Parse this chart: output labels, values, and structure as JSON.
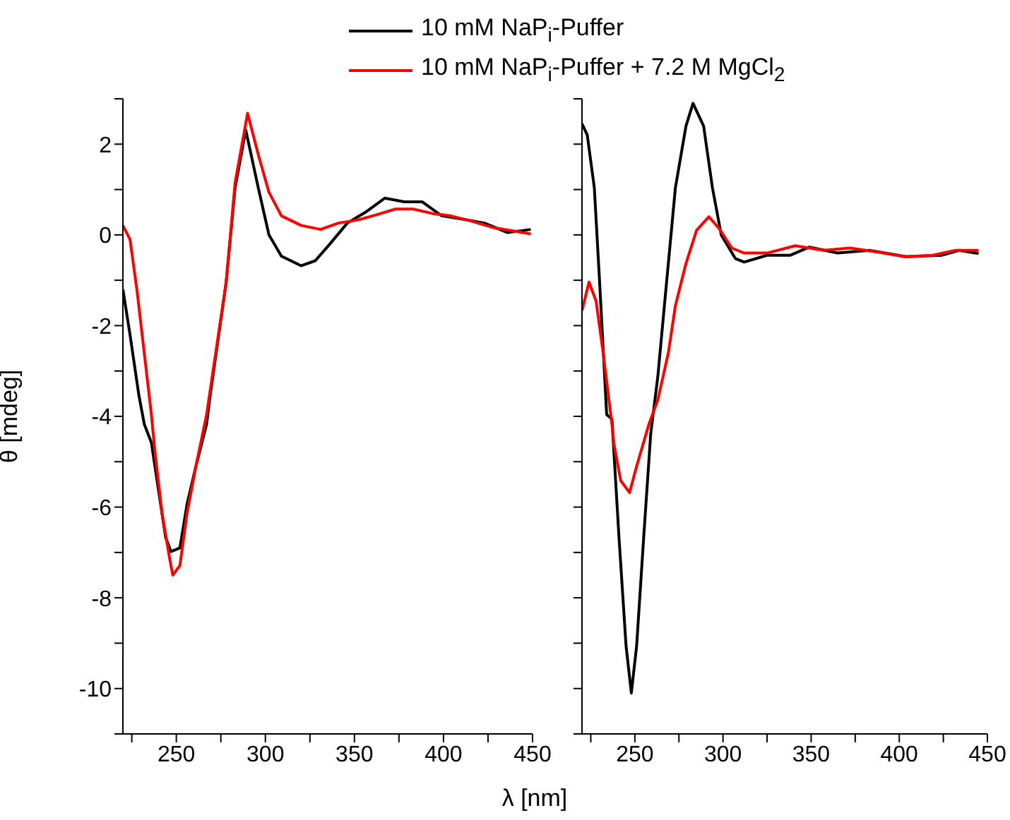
{
  "chart_data": [
    {
      "type": "line",
      "ylabel": "θ [mdeg]",
      "xlabel": "λ [nm]",
      "legend": "top",
      "xlim": [
        220,
        450
      ],
      "ylim": [
        -11,
        3
      ],
      "xticks": [
        {
          "value": 225,
          "label": null
        },
        250,
        {
          "value": 275,
          "label": null
        },
        300,
        {
          "value": 325,
          "label": null
        },
        350,
        {
          "value": 375,
          "label": null
        },
        400,
        {
          "value": 425,
          "label": null
        },
        450
      ],
      "yticks": [
        {
          "value": -11,
          "label": null
        },
        -10,
        {
          "value": -9,
          "label": null
        },
        -8,
        {
          "value": -7,
          "label": null
        },
        -6,
        {
          "value": -5,
          "label": null
        },
        -4,
        {
          "value": -3,
          "label": null
        },
        -2,
        {
          "value": -1,
          "label": null
        },
        0,
        {
          "value": 1,
          "label": null
        },
        2,
        {
          "value": 3,
          "label": null
        }
      ],
      "series": [
        {
          "name": "10 mM NaP$_{i}$-Puffer",
          "color": "#000000",
          "x": [
            220,
            224,
            229,
            232,
            236,
            240,
            244,
            247,
            252,
            256,
            261,
            267,
            269,
            278,
            283,
            289,
            296,
            302,
            309,
            320,
            328,
            336,
            346,
            357,
            367,
            378,
            388,
            399,
            409,
            423,
            436,
            449
          ],
          "values": [
            -1.2,
            -2.2,
            -3.54,
            -4.17,
            -4.58,
            -5.63,
            -6.67,
            -6.98,
            -6.9,
            -5.94,
            -5.1,
            -4.17,
            -3.54,
            -1.04,
            1.04,
            2.31,
            1.04,
            0,
            -0.47,
            -0.68,
            -0.57,
            -0.21,
            0.26,
            0.52,
            0.81,
            0.73,
            0.73,
            0.42,
            0.36,
            0.26,
            0.05,
            0.12
          ]
        },
        {
          "name": "10 mM NaP$_{i}$-Puffer + 7.2 M MgCl$_{2}$",
          "color": "#ff0000",
          "x": [
            220,
            224,
            228,
            236,
            238,
            242,
            246,
            248,
            252,
            256,
            261,
            267,
            278,
            283,
            290,
            296,
            302,
            309,
            320,
            331,
            341,
            352,
            362,
            373,
            383,
            394,
            404,
            415,
            428,
            449
          ],
          "values": [
            0.21,
            -0.1,
            -1.25,
            -3.96,
            -4.79,
            -6.14,
            -7.08,
            -7.5,
            -7.29,
            -6.14,
            -5.1,
            -3.96,
            -1.04,
            1.15,
            2.68,
            1.77,
            0.94,
            0.42,
            0.21,
            0.12,
            0.26,
            0.33,
            0.44,
            0.57,
            0.57,
            0.47,
            0.42,
            0.31,
            0.16,
            0.02
          ]
        }
      ]
    },
    {
      "type": "line",
      "tick_labels": "x",
      "xlim": [
        220,
        450
      ],
      "ylim": [
        -11,
        3
      ],
      "xticks": [
        {
          "value": 225,
          "label": null
        },
        250,
        {
          "value": 275,
          "label": null
        },
        300,
        {
          "value": 325,
          "label": null
        },
        350,
        {
          "value": 375,
          "label": null
        },
        400,
        {
          "value": 425,
          "label": null
        },
        450
      ],
      "yticks": [
        {
          "value": -11,
          "label": null
        },
        {
          "value": -10,
          "label": null
        },
        {
          "value": -9,
          "label": null
        },
        {
          "value": -8,
          "label": null
        },
        {
          "value": -7,
          "label": null
        },
        {
          "value": -6,
          "label": null
        },
        {
          "value": -5,
          "label": null
        },
        {
          "value": -4,
          "label": null
        },
        {
          "value": -3,
          "label": null
        },
        {
          "value": -2,
          "label": null
        },
        {
          "value": -1,
          "label": null
        },
        {
          "value": 0,
          "label": null
        },
        {
          "value": 1,
          "label": null
        },
        {
          "value": 2,
          "label": null
        },
        {
          "value": 3,
          "label": null
        }
      ],
      "series": [
        {
          "color": "#000000",
          "x": [
            220,
            223,
            227,
            230,
            234,
            237,
            241,
            245,
            248,
            251,
            255,
            259,
            263,
            268,
            273,
            279,
            283,
            289,
            294,
            299,
            307,
            312,
            325,
            338,
            349,
            365,
            383,
            404,
            424,
            434,
            445
          ],
          "values": [
            2.45,
            2.2,
            1.04,
            -1.04,
            -3.96,
            -4.06,
            -6.67,
            -9.06,
            -10.1,
            -9.06,
            -6.67,
            -4.38,
            -3.13,
            -1.04,
            1.04,
            2.4,
            2.9,
            2.4,
            1.04,
            0,
            -0.52,
            -0.6,
            -0.45,
            -0.45,
            -0.27,
            -0.4,
            -0.34,
            -0.48,
            -0.45,
            -0.34,
            -0.41
          ]
        },
        {
          "color": "#ff0000",
          "x": [
            220,
            224,
            228,
            232,
            237,
            238,
            242,
            247,
            251,
            258,
            263,
            269,
            273,
            279,
            285,
            292,
            298,
            305,
            312,
            325,
            341,
            357,
            372,
            388,
            403,
            419,
            432,
            445
          ],
          "values": [
            -1.67,
            -1.04,
            -1.46,
            -2.6,
            -4.17,
            -4.58,
            -5.42,
            -5.68,
            -5.1,
            -4.17,
            -3.64,
            -2.6,
            -1.56,
            -0.63,
            0.1,
            0.4,
            0.13,
            -0.29,
            -0.4,
            -0.4,
            -0.24,
            -0.34,
            -0.29,
            -0.38,
            -0.48,
            -0.45,
            -0.34,
            -0.34
          ]
        }
      ]
    }
  ]
}
